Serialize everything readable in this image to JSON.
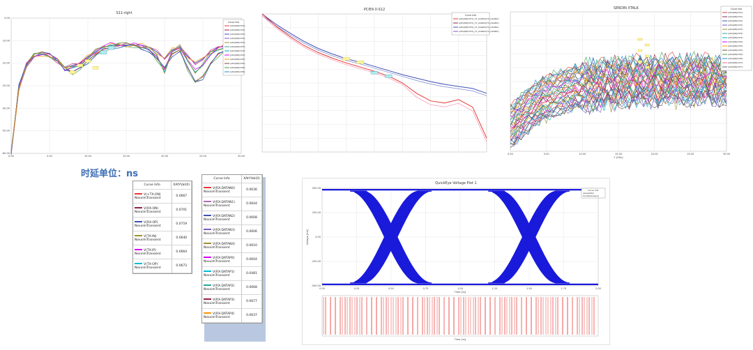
{
  "chart_data": [
    {
      "type": "line",
      "title": "S11-right",
      "legend_header": "Curve Info",
      "legend": [
        "[ADS]DB[CSF1]",
        "[ADS]DB[CSF1]",
        "[ADS]DB[CSF2]",
        "[ADS]DB[CSF2]",
        "[ADS]DB[CSF3]",
        "[ADS]DB[CSF3]",
        "[ADS]DB[CSF4]",
        "[ADS]DB[CSF4]",
        "[ADS]DB[CSF5]",
        "[ADS]DB[CSF5]",
        "[ADS]DB[CSF6]",
        "[ADS]DB[CSF6]"
      ],
      "yticks": [
        "0.00",
        "-10.00",
        "-20.00",
        "-30.00",
        "-40.00",
        "-50.00",
        "-60.00"
      ],
      "xticks": [
        "0.00",
        "5.00",
        "10.00",
        "15.00",
        "20.00",
        "25.00",
        "30.00"
      ],
      "ylim": [
        -60,
        0
      ],
      "xlim": [
        0,
        30
      ],
      "series": [
        {
          "color": "#e53935",
          "x": [
            0,
            1,
            2,
            3,
            4,
            5,
            6,
            7,
            8,
            9,
            10,
            11,
            12,
            13,
            14,
            15,
            16,
            17,
            18,
            19,
            20,
            21,
            22,
            23,
            24,
            25,
            26,
            27,
            28,
            29,
            30
          ],
          "values": [
            -60,
            -30,
            -20,
            -16,
            -15,
            -16,
            -18,
            -22,
            -24,
            -22,
            -19,
            -16,
            -14,
            -13,
            -12,
            -12,
            -12,
            -13,
            -14,
            -18,
            -22,
            -16,
            -14,
            -22,
            -28,
            -26,
            -20,
            -16,
            -14,
            -13,
            -12
          ]
        },
        {
          "color": "#3f51b5",
          "x": [
            0,
            1,
            2,
            3,
            4,
            5,
            6,
            7,
            8,
            9,
            10,
            11,
            12,
            13,
            14,
            15,
            16,
            17,
            18,
            19,
            20,
            21,
            22,
            23,
            24,
            25,
            26,
            27,
            28,
            29,
            30
          ],
          "values": [
            -60,
            -32,
            -21,
            -17,
            -16,
            -17,
            -19,
            -22,
            -21,
            -20,
            -17,
            -15,
            -13,
            -12,
            -12,
            -12,
            -12,
            -12,
            -13,
            -15,
            -18,
            -14,
            -13,
            -17,
            -20,
            -18,
            -15,
            -13,
            -12,
            -12,
            -11
          ]
        },
        {
          "color": "#00acc1",
          "x": [
            0,
            1,
            2,
            3,
            4,
            5,
            6,
            7,
            8,
            9,
            10,
            11,
            12,
            13,
            14,
            15,
            16,
            17,
            18,
            19,
            20,
            21,
            22,
            23,
            24,
            25,
            26,
            27,
            28,
            29,
            30
          ],
          "values": [
            -60,
            -31,
            -21,
            -17,
            -16,
            -17,
            -19,
            -23,
            -22,
            -21,
            -18,
            -15,
            -13,
            -12,
            -12,
            -12,
            -12,
            -13,
            -14,
            -17,
            -24,
            -15,
            -13,
            -19,
            -24,
            -21,
            -16,
            -14,
            -13,
            -12,
            -12
          ]
        }
      ]
    },
    {
      "type": "line",
      "title": "PCIE4.0-S12",
      "legend_header": "Curve Info",
      "legend": [
        "[ADS]DB[CSF1]_TX_LDAREA[TX_LDAREA]",
        "[ADS]DB[CSF1]_TX_LDAREA[TX_LDAREA]",
        "[ADS]DB[CSF2]_TX_LDAREA[TX_LDAREA]",
        "[ADS]DB[CSF2]_TX_LDAREA[TX_LDAREA]"
      ],
      "xlim": [
        0,
        16
      ],
      "ylim": [
        -20,
        0
      ],
      "series": [
        {
          "color": "#3f51b5",
          "x": [
            0,
            1,
            2,
            3,
            4,
            5,
            6,
            7,
            8,
            9,
            10,
            11,
            12,
            13,
            14,
            15,
            16
          ],
          "values": [
            0,
            -1.5,
            -2.8,
            -4,
            -5,
            -5.8,
            -6.5,
            -7,
            -7.6,
            -8.2,
            -8.8,
            -9.3,
            -9.8,
            -10.2,
            -10.5,
            -10.8,
            -11.5
          ]
        },
        {
          "color": "#e53935",
          "x": [
            0,
            1,
            2,
            3,
            4,
            5,
            6,
            7,
            8,
            9,
            10,
            11,
            12,
            13,
            14,
            15,
            16
          ],
          "values": [
            0,
            -1.8,
            -3.3,
            -4.6,
            -5.6,
            -6.4,
            -7.1,
            -7.7,
            -8.3,
            -9,
            -10,
            -11.5,
            -12.6,
            -12.9,
            -12.4,
            -13.5,
            -18
          ]
        }
      ]
    },
    {
      "type": "line",
      "title": "SERDIN XTALK",
      "legend_header": "Curve Info",
      "legend": [
        "[ADS]DB[CSF1]",
        "[ADS]DB[CSF1]",
        "[ADS]DB[CSF2]",
        "[ADS]DB[CSF2]",
        "[ADS]DB[CSF3]",
        "[ADS]DB[CSF3]",
        "[ADS]DB[CSF4]",
        "[ADS]DB[CSF4]",
        "[ADS]DB[CSF5]",
        "[ADS]DB[CSF5]",
        "[ADS]DB[CSF6]",
        "[ADS]DB[CSF6]",
        "[ADS]DB[CSF7]",
        "[ADS]DB[CSF7]"
      ],
      "xlabel": "F [GHz]",
      "xticks": [
        "0.00",
        "5.00",
        "10.00",
        "15.00",
        "20.00",
        "25.00",
        "30.00"
      ],
      "xlim": [
        0,
        30
      ],
      "ylim": [
        -100,
        0
      ]
    },
    {
      "type": "line",
      "title": "QuickEye Voltage Plot 1",
      "xlabel": "Time [ns]",
      "ylabel": "Voltage [mV]",
      "xticks": [
        "0.00",
        "0.25",
        "0.50",
        "0.75",
        "1.00",
        "1.25",
        "1.50",
        "1.75",
        "2.00"
      ],
      "yticks": [
        "500.00",
        "250.00",
        "0.00",
        "-250.00",
        "-500.00"
      ],
      "xlim": [
        0,
        2
      ],
      "ylim": [
        -500,
        500
      ]
    }
  ],
  "note_label": "时延单位：ns",
  "delay_table_1": {
    "header": [
      "Curve Info",
      "XAtYVal(0)"
    ],
    "rows": [
      {
        "name": "V(+TX-ON)",
        "sub": "NexximTransient",
        "value": "0.0667",
        "color": "#e53935"
      },
      {
        "name": "V(RX-ON)",
        "sub": "NexximTransient",
        "value": "0.0701",
        "color": "#8e2447"
      },
      {
        "name": "V(RX-OP)",
        "sub": "NexximTransient",
        "value": "0.0719",
        "color": "#3f51b5"
      },
      {
        "name": "V(TX-IN)",
        "sub": "NexximTransient",
        "value": "0.0640",
        "color": "#9e8f2a"
      },
      {
        "name": "V(TX-IP)",
        "sub": "NexximTransient",
        "value": "0.0664",
        "color": "#d500f9"
      },
      {
        "name": "V(TX-OP)",
        "sub": "NexximTransient",
        "value": "0.0673",
        "color": "#00bcd4"
      }
    ]
  },
  "delay_table_2": {
    "header": [
      "Curve Info",
      "XAtYVal(0)"
    ],
    "rows": [
      {
        "name": "V(RX-DATAN0)",
        "sub": "NexximTransient",
        "value": "0.0636",
        "color": "#e53935"
      },
      {
        "name": "V(RX-DATAN1)",
        "sub": "NexximTransient",
        "value": "0.0644",
        "color": "#b06ab3"
      },
      {
        "name": "V(RX-DATAN2)",
        "sub": "NexximTransient",
        "value": "0.0608",
        "color": "#3f51b5"
      },
      {
        "name": "V(RX-DATAN3)",
        "sub": "NexximTransient",
        "value": "0.0606",
        "color": "#7e57c2"
      },
      {
        "name": "V(RX-DATAN4)",
        "sub": "NexximTransient",
        "value": "0.0610",
        "color": "#9e8f2a"
      },
      {
        "name": "V(RX-DATAP0)",
        "sub": "NexximTransient",
        "value": "0.0604",
        "color": "#d500f9"
      },
      {
        "name": "V(RX-DATAP1)",
        "sub": "NexximTransient",
        "value": "0.0481",
        "color": "#00bcd4"
      },
      {
        "name": "V(RX-DATAP2)",
        "sub": "NexximTransient",
        "value": "0.0668",
        "color": "#26a69a"
      },
      {
        "name": "V(RX-DATAP3)",
        "sub": "NexximTransient",
        "value": "0.0677",
        "color": "#8e2447"
      },
      {
        "name": "V(RX-DATAP4)",
        "sub": "NexximTransient",
        "value": "0.0637",
        "color": "#ff9800"
      }
    ]
  },
  "eye_legend": {
    "header": "Curve Info",
    "lines": [
      "passes/total",
      "QuickEyeAnalysis"
    ]
  }
}
